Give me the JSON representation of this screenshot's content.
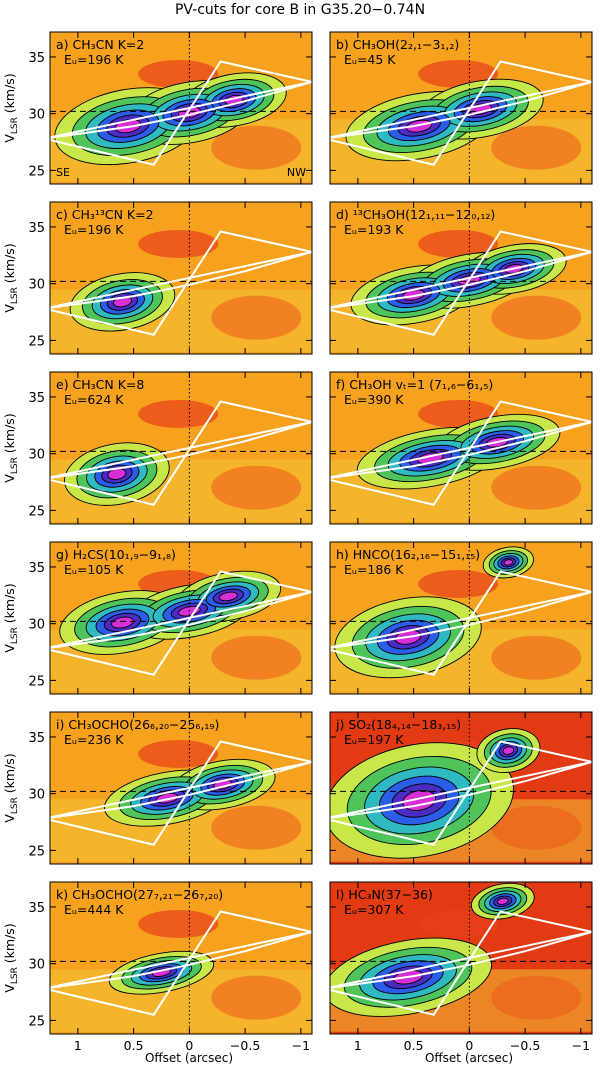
{
  "figure_title": "PV-cuts for core B in G35.20−0.74N",
  "axes": {
    "ylabel_main": "V",
    "ylabel_sub": "LSR",
    "ylabel_unit": " (km/s)",
    "xlabel": "Offset (arcsec)",
    "xticks": [
      "1",
      "0.5",
      "0",
      "−0.5",
      "−1"
    ],
    "yticks": [
      "25",
      "30",
      "35"
    ]
  },
  "chart_data": {
    "type": "heatmap",
    "title": "PV-cuts for core B in G35.20−0.74N",
    "xlabel": "Offset (arcsec)",
    "ylabel": "V_LSR (km/s)",
    "xlim": [
      1.25,
      -1.1
    ],
    "ylim": [
      23.8,
      37.2
    ],
    "xticks": [
      1,
      0.5,
      0,
      -0.5,
      -1
    ],
    "yticks": [
      25,
      30,
      35
    ],
    "systemic_velocity_line": 30.2,
    "zero_offset_line": 0,
    "orientation_labels": {
      "left": "SE",
      "right": "NW"
    },
    "overlay_polygon": [
      [
        1.3,
        27.8
      ],
      [
        0.32,
        25.5
      ],
      [
        -0.28,
        34.6
      ],
      [
        -1.1,
        32.8
      ]
    ],
    "overlay_rotation_curve": [
      [
        1.3,
        27.8
      ],
      [
        0.5,
        28.9
      ],
      [
        0.0,
        29.9
      ],
      [
        -0.5,
        31.1
      ],
      [
        -1.1,
        32.8
      ]
    ],
    "panels": [
      {
        "label": "a)",
        "species": "CH₃CN K=2",
        "eu": "Eᵤ=196 K",
        "blobs": [
          {
            "x": 0.55,
            "v": 28.9,
            "rx": 0.35,
            "rv": 1.7
          },
          {
            "x": 0.0,
            "v": 30.1,
            "rx": 0.3,
            "rv": 1.4
          },
          {
            "x": -0.4,
            "v": 31.2,
            "rx": 0.25,
            "rv": 1.2
          }
        ]
      },
      {
        "label": "b)",
        "species": "CH₃OH(2₂,₁−3₁,₂)",
        "eu": "Eᵤ=45 K",
        "blobs": [
          {
            "x": 0.45,
            "v": 28.9,
            "rx": 0.35,
            "rv": 1.5
          },
          {
            "x": -0.1,
            "v": 30.4,
            "rx": 0.3,
            "rv": 1.3
          }
        ]
      },
      {
        "label": "c)",
        "species": "CH₃¹³CN K=2",
        "eu": "Eᵤ=196 K",
        "blobs": [
          {
            "x": 0.6,
            "v": 28.4,
            "rx": 0.25,
            "rv": 1.3
          }
        ]
      },
      {
        "label": "d)",
        "species": "¹³CH₃OH(12₁,₁₁−12₀,₁₂)",
        "eu": "Eᵤ=193 K",
        "blobs": [
          {
            "x": 0.5,
            "v": 29.0,
            "rx": 0.3,
            "rv": 1.3
          },
          {
            "x": 0.0,
            "v": 30.3,
            "rx": 0.3,
            "rv": 1.2
          },
          {
            "x": -0.4,
            "v": 31.3,
            "rx": 0.25,
            "rv": 1.1
          }
        ]
      },
      {
        "label": "e)",
        "species": "CH₃CN K=8",
        "eu": "Eᵤ=624 K",
        "blobs": [
          {
            "x": 0.65,
            "v": 28.2,
            "rx": 0.25,
            "rv": 1.4
          }
        ]
      },
      {
        "label": "f)",
        "species": "CH₃OH vₜ=1 (7₁,₆−6₁,₅)",
        "eu": "Eᵤ=390 K",
        "blobs": [
          {
            "x": 0.35,
            "v": 29.6,
            "rx": 0.35,
            "rv": 1.3
          },
          {
            "x": -0.25,
            "v": 31.0,
            "rx": 0.3,
            "rv": 1.2
          }
        ]
      },
      {
        "label": "g)",
        "species": "H₂CS(10₁,₉−9₁,₈)",
        "eu": "Eᵤ=105 K",
        "blobs": [
          {
            "x": 0.6,
            "v": 30.1,
            "rx": 0.3,
            "rv": 1.4
          },
          {
            "x": 0.0,
            "v": 31.1,
            "rx": 0.3,
            "rv": 1.2
          },
          {
            "x": -0.35,
            "v": 32.4,
            "rx": 0.25,
            "rv": 1.1
          }
        ]
      },
      {
        "label": "h)",
        "species": "HNCO(16₂,₁₆−15₁,₁₅)",
        "eu": "Eᵤ=186 K",
        "blobs": [
          {
            "x": 0.55,
            "v": 28.8,
            "rx": 0.35,
            "rv": 1.8
          },
          {
            "x": -0.35,
            "v": 35.4,
            "rx": 0.12,
            "rv": 0.7
          }
        ]
      },
      {
        "label": "i)",
        "species": "CH₃OCHO(26₆,₂₀−25₆,₁₉)",
        "eu": "Eᵤ=236 K",
        "blobs": [
          {
            "x": 0.2,
            "v": 29.6,
            "rx": 0.3,
            "rv": 1.2
          },
          {
            "x": -0.3,
            "v": 30.8,
            "rx": 0.25,
            "rv": 1.1
          }
        ]
      },
      {
        "label": "j)",
        "species": "SO₂(18₄,₁₄−18₃,₁₅)",
        "eu": "Eᵤ=197 K",
        "blobs": [
          {
            "x": 0.45,
            "v": 29.4,
            "rx": 0.45,
            "rv": 2.6
          },
          {
            "x": -0.35,
            "v": 33.8,
            "rx": 0.15,
            "rv": 1.0
          }
        ]
      },
      {
        "label": "k)",
        "species": "CH₃OCHO(27₇,₂₁−26₇,₂₀)",
        "eu": "Eᵤ=444 K",
        "blobs": [
          {
            "x": 0.25,
            "v": 29.2,
            "rx": 0.25,
            "rv": 0.9
          }
        ]
      },
      {
        "label": "l)",
        "species": "HC₃N(37−36)",
        "eu": "Eᵤ=307 K",
        "blobs": [
          {
            "x": 0.55,
            "v": 28.8,
            "rx": 0.4,
            "rv": 1.7
          },
          {
            "x": -0.3,
            "v": 35.5,
            "rx": 0.15,
            "rv": 0.8
          }
        ]
      }
    ]
  }
}
